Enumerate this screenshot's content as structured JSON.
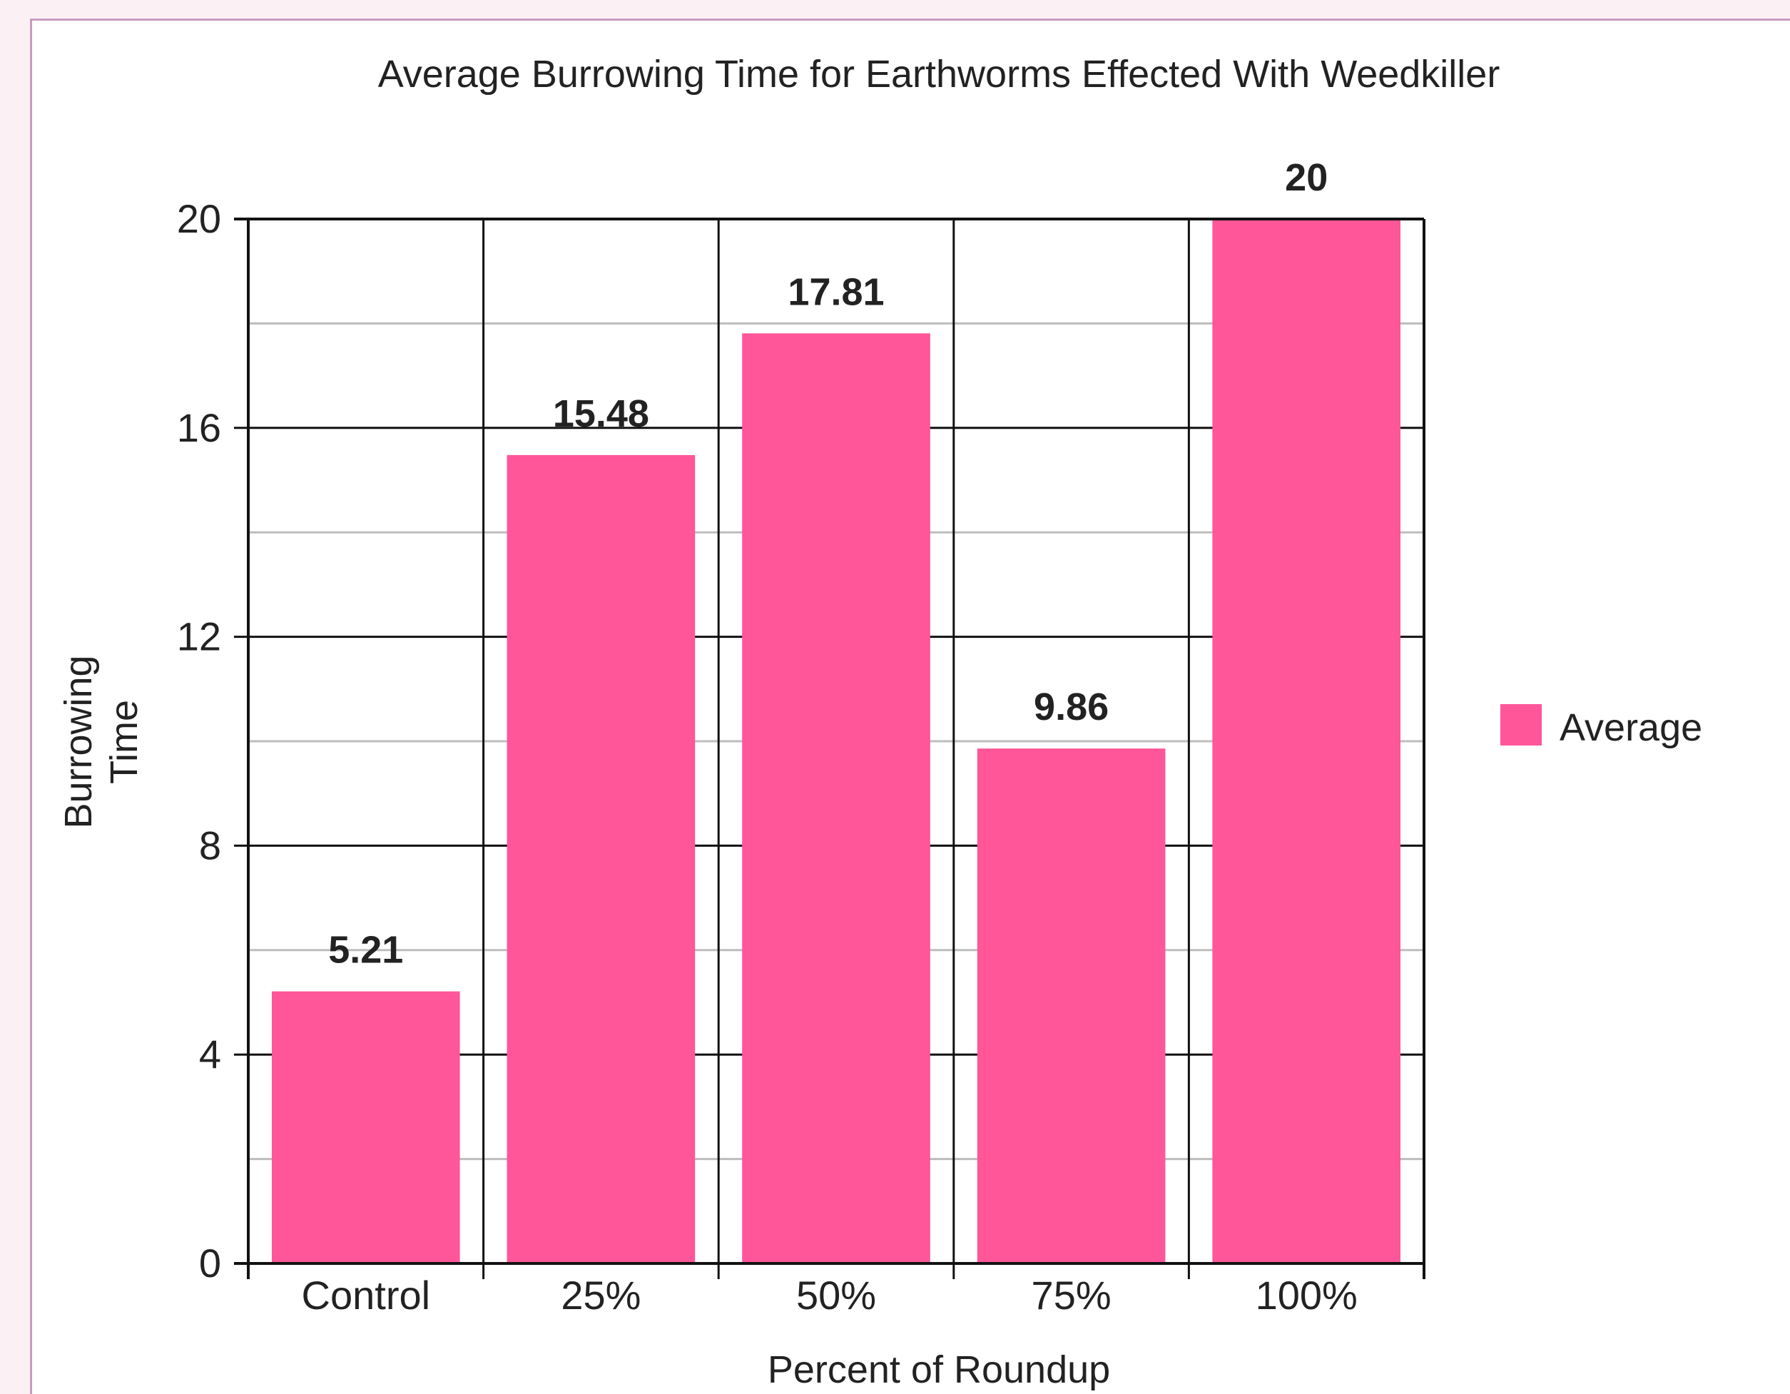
{
  "chart_data": {
    "type": "bar",
    "title": "Average Burrowing Time for Earthworms Effected With Weedkiller",
    "xlabel": "Percent of Roundup",
    "ylabel_lines": [
      "Burrowing",
      "Time"
    ],
    "categories": [
      "Control",
      "25%",
      "50%",
      "75%",
      "100%"
    ],
    "series": [
      {
        "name": "Average",
        "values": [
          5.21,
          15.48,
          17.81,
          9.86,
          20
        ],
        "labels": [
          "5.21",
          "15.48",
          "17.81",
          "9.86",
          "20"
        ],
        "color": "#ff5599"
      }
    ],
    "ylim": [
      0,
      20
    ],
    "yticks": [
      0,
      4,
      8,
      12,
      16,
      20
    ],
    "ytick_labels": [
      "0",
      "4",
      "8",
      "12",
      "16",
      "20"
    ],
    "minor_grid": [
      2,
      6,
      10,
      14,
      18
    ],
    "grid": true,
    "legend_position": "right"
  }
}
